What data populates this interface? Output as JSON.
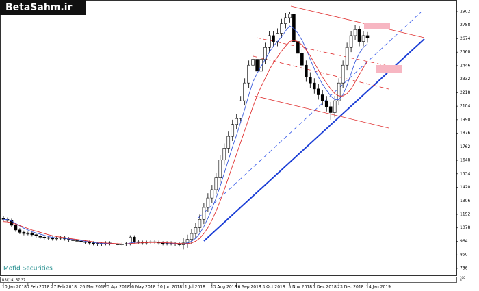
{
  "chart_data": {
    "type": "candlestick",
    "logo": "BetaSahm.ir",
    "watermark": "Mofid Securities",
    "indicator": {
      "label": "RSI(14) 57.37",
      "yticks": [
        100,
        0
      ]
    },
    "categories": [
      "10 Jan 2018",
      null,
      null,
      null,
      null,
      null,
      "3 Feb 2018",
      null,
      null,
      null,
      null,
      null,
      "27 Feb 2018",
      null,
      null,
      null,
      null,
      null,
      null,
      "26 Mar 2018",
      null,
      null,
      null,
      null,
      null,
      "23 Apr 2018",
      null,
      null,
      null,
      null,
      null,
      "16 May 2018",
      null,
      null,
      null,
      null,
      null,
      null,
      "10 Jun 2018",
      null,
      null,
      null,
      null,
      null,
      "11 Jul 2018",
      null,
      null,
      null,
      null,
      null,
      null,
      "13 Aug 2018",
      null,
      null,
      null,
      null,
      null,
      "16 Sep 2018",
      null,
      null,
      null,
      null,
      null,
      "13 Oct 2018",
      null,
      null,
      null,
      null,
      null,
      null,
      "5 Nov 2018",
      null,
      null,
      null,
      null,
      null,
      "1 Dec 2018",
      null,
      null,
      null,
      null,
      null,
      "23 Dec 2018",
      null,
      null,
      null,
      null,
      null,
      null,
      "14 Jan 2019"
    ],
    "open": [
      1160,
      1150,
      1140,
      1100,
      1060,
      1040,
      1030,
      1030,
      1020,
      1010,
      1000,
      995,
      990,
      985,
      990,
      995,
      985,
      975,
      970,
      965,
      960,
      955,
      950,
      945,
      940,
      945,
      950,
      945,
      940,
      935,
      940,
      945,
      1000,
      960,
      955,
      950,
      955,
      960,
      955,
      950,
      945,
      950,
      945,
      940,
      935,
      950,
      980,
      1030,
      1080,
      1150,
      1250,
      1330,
      1400,
      1500,
      1650,
      1750,
      1850,
      1950,
      2000,
      2150,
      2300,
      2450,
      2500,
      2400,
      2500,
      2600,
      2700,
      2650,
      2720,
      2800,
      2850,
      2880,
      2650,
      2550,
      2450,
      2350,
      2300,
      2250,
      2200,
      2150,
      2100,
      2050,
      2150,
      2300,
      2450,
      2600,
      2700,
      2750,
      2650,
      2700
    ],
    "high": [
      1175,
      1165,
      1155,
      1115,
      1075,
      1055,
      1045,
      1045,
      1035,
      1025,
      1015,
      1010,
      1005,
      1005,
      1010,
      1010,
      1000,
      990,
      985,
      980,
      975,
      970,
      965,
      960,
      960,
      965,
      965,
      960,
      955,
      955,
      960,
      1015,
      1015,
      975,
      970,
      970,
      975,
      975,
      970,
      965,
      965,
      965,
      960,
      955,
      990,
      1020,
      1070,
      1120,
      1190,
      1290,
      1370,
      1440,
      1540,
      1690,
      1790,
      1890,
      1990,
      2040,
      2190,
      2340,
      2490,
      2540,
      2540,
      2540,
      2640,
      2740,
      2740,
      2760,
      2840,
      2890,
      2902,
      2895,
      2690,
      2590,
      2490,
      2390,
      2340,
      2290,
      2240,
      2190,
      2140,
      2190,
      2340,
      2490,
      2640,
      2740,
      2788,
      2780,
      2740,
      2730
    ],
    "low": [
      1135,
      1125,
      1085,
      1045,
      1025,
      1015,
      1015,
      1005,
      995,
      985,
      980,
      975,
      970,
      970,
      975,
      970,
      960,
      955,
      950,
      945,
      940,
      935,
      930,
      925,
      925,
      930,
      930,
      925,
      920,
      920,
      925,
      930,
      945,
      940,
      935,
      935,
      940,
      940,
      935,
      930,
      930,
      930,
      925,
      920,
      895,
      910,
      940,
      990,
      1040,
      1110,
      1210,
      1290,
      1360,
      1460,
      1610,
      1710,
      1810,
      1910,
      1960,
      2110,
      2260,
      2410,
      2360,
      2360,
      2460,
      2560,
      2610,
      2610,
      2680,
      2760,
      2810,
      2610,
      2510,
      2410,
      2310,
      2260,
      2210,
      2160,
      2110,
      2060,
      1990,
      2010,
      2110,
      2260,
      2410,
      2560,
      2660,
      2610,
      2610,
      2640
    ],
    "close": [
      1150,
      1140,
      1100,
      1060,
      1040,
      1030,
      1030,
      1020,
      1010,
      1000,
      995,
      990,
      985,
      990,
      995,
      985,
      975,
      970,
      965,
      960,
      955,
      950,
      945,
      940,
      945,
      950,
      945,
      940,
      935,
      940,
      945,
      1000,
      960,
      955,
      950,
      955,
      960,
      955,
      950,
      945,
      950,
      945,
      940,
      935,
      950,
      980,
      1030,
      1080,
      1150,
      1250,
      1330,
      1400,
      1500,
      1650,
      1750,
      1850,
      1950,
      2000,
      2150,
      2300,
      2450,
      2500,
      2400,
      2500,
      2600,
      2700,
      2650,
      2720,
      2800,
      2850,
      2880,
      2650,
      2550,
      2450,
      2350,
      2300,
      2250,
      2200,
      2150,
      2100,
      2050,
      2150,
      2300,
      2450,
      2600,
      2700,
      2750,
      2650,
      2700,
      2680
    ],
    "moving_averages": [
      {
        "color": "#3b5bdb",
        "values": [
          1150,
          1148,
          1135,
          1115,
          1095,
          1075,
          1060,
          1045,
          1035,
          1025,
          1015,
          1005,
          998,
          993,
          992,
          990,
          985,
          980,
          975,
          970,
          965,
          960,
          955,
          950,
          947,
          946,
          945,
          944,
          942,
          940,
          940,
          950,
          955,
          957,
          958,
          958,
          957,
          957,
          955,
          953,
          950,
          948,
          946,
          943,
          943,
          950,
          965,
          990,
          1030,
          1090,
          1160,
          1240,
          1330,
          1430,
          1540,
          1650,
          1760,
          1860,
          1970,
          2080,
          2200,
          2310,
          2380,
          2440,
          2500,
          2560,
          2610,
          2650,
          2690,
          2740,
          2780,
          2760,
          2720,
          2660,
          2590,
          2500,
          2420,
          2350,
          2290,
          2240,
          2190,
          2160,
          2160,
          2200,
          2280,
          2380,
          2480,
          2550,
          2600,
          2630
        ]
      },
      {
        "color": "#e03131",
        "values": [
          1130,
          1128,
          1120,
          1110,
          1098,
          1085,
          1072,
          1060,
          1050,
          1040,
          1030,
          1020,
          1012,
          1005,
          1000,
          995,
          990,
          985,
          980,
          975,
          970,
          965,
          960,
          956,
          952,
          950,
          948,
          946,
          944,
          942,
          941,
          945,
          948,
          950,
          952,
          953,
          954,
          955,
          954,
          953,
          952,
          950,
          948,
          946,
          944,
          945,
          950,
          965,
          990,
          1030,
          1080,
          1145,
          1220,
          1305,
          1400,
          1500,
          1600,
          1700,
          1800,
          1900,
          2000,
          2100,
          2190,
          2270,
          2340,
          2410,
          2470,
          2520,
          2570,
          2610,
          2650,
          2660,
          2650,
          2620,
          2580,
          2530,
          2470,
          2410,
          2350,
          2300,
          2250,
          2210,
          2190,
          2190,
          2210,
          2250,
          2310,
          2370,
          2430,
          2480
        ]
      }
    ],
    "ylim": [
      678,
      3000
    ],
    "yticks": [
      2902,
      2788,
      2674,
      2560,
      2446,
      2332,
      2218,
      2104,
      1990,
      1876,
      1762,
      1648,
      1534,
      1420,
      1306,
      1192,
      1078,
      964,
      850,
      736
    ]
  }
}
